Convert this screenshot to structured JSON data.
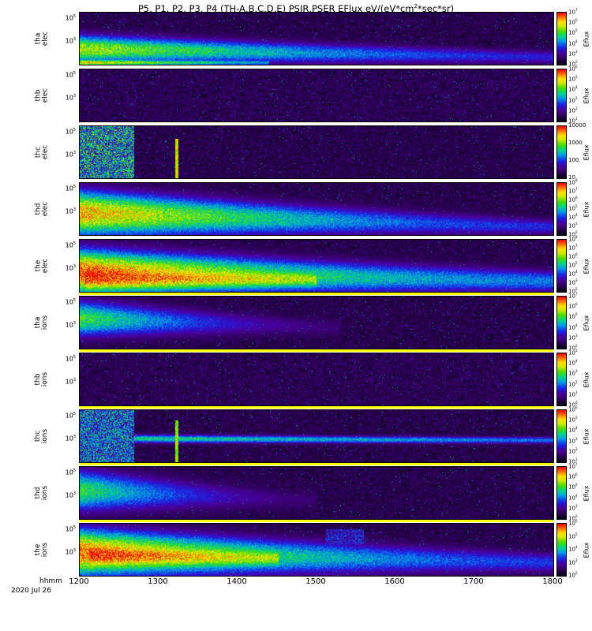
{
  "chart_data": {
    "type": "heatmap",
    "colormap": "rainbow",
    "title_prefix": "P5, P1, P2, P3, P4 (TH-A,B,C,D,E) PSIR,PSER EFlux eV/(eV*cm",
    "title_sup": "2",
    "title_suffix": "*sec*sr)",
    "colors": {
      "separator": "#ffff00",
      "panel_background": "#08000f",
      "page_background": "#ffffff"
    },
    "x_axis": {
      "label": "hhmm",
      "date": "2020 Jul 26",
      "ticks": [
        "1200",
        "1300",
        "1400",
        "1500",
        "1600",
        "1700",
        "1800"
      ],
      "range": [
        1200,
        1800
      ]
    },
    "panels": [
      {
        "probe": "tha",
        "species": "elec",
        "yticks": [
          {
            "base": "10",
            "exp": "5",
            "frac": 0.12
          },
          {
            "base": "10",
            "exp": "3",
            "frac": 0.55
          }
        ],
        "colorbar_label": "Eflux",
        "colorbar_ticks": [
          {
            "base": "10",
            "exp": "7"
          },
          {
            "base": "10",
            "exp": "6"
          },
          {
            "base": "10",
            "exp": "5"
          },
          {
            "base": "10",
            "exp": "4"
          },
          {
            "base": "10",
            "exp": "3"
          },
          {
            "base": "10",
            "exp": "2"
          }
        ],
        "noise": 0.18,
        "yellow_separator_after": false,
        "features": [
          {
            "type": "band",
            "x0": 0,
            "x1": 1,
            "v0": 0.72,
            "v1": 0.3,
            "yc0": 0.7,
            "yc1": 0.86,
            "yw0": 0.2,
            "yw1": 0.1,
            "p": 1.6
          },
          {
            "type": "band",
            "x0": 0,
            "x1": 0.4,
            "v0": 0.8,
            "v1": 0.45,
            "yc0": 0.96,
            "yc1": 0.96,
            "yw0": 0.05,
            "yw1": 0.04,
            "p": 1.2
          }
        ]
      },
      {
        "probe": "thb",
        "species": "elec",
        "yticks": [
          {
            "base": "10",
            "exp": "5",
            "frac": 0.12
          },
          {
            "base": "10",
            "exp": "3",
            "frac": 0.55
          }
        ],
        "colorbar_label": "Eflux",
        "colorbar_ticks": [
          {
            "base": "10",
            "exp": "6"
          },
          {
            "base": "10",
            "exp": "5"
          },
          {
            "base": "10",
            "exp": "4"
          },
          {
            "base": "10",
            "exp": "3"
          },
          {
            "base": "10",
            "exp": "2"
          },
          {
            "base": "10",
            "exp": "1"
          }
        ],
        "noise": 0.2,
        "yellow_separator_after": false,
        "features": []
      },
      {
        "probe": "thc",
        "species": "elec",
        "yticks": [
          {
            "base": "10",
            "exp": "5",
            "frac": 0.12
          },
          {
            "base": "10",
            "exp": "3",
            "frac": 0.55
          }
        ],
        "colorbar_label": "Eflux",
        "colorbar_ticks": [
          {
            "text": "10000"
          },
          {
            "text": "1000"
          },
          {
            "text": "100"
          },
          {
            "text": "10"
          }
        ],
        "noise": 0.18,
        "yellow_separator_after": false,
        "features": [
          {
            "type": "block",
            "x0": 0,
            "x1": 0.115,
            "y0": 0,
            "y1": 1,
            "vmin": 0.12,
            "vmax": 0.72
          },
          {
            "type": "vline",
            "x": 0.205,
            "y0": 0.25,
            "y1": 1,
            "v": 0.9,
            "w": 0.0035
          }
        ]
      },
      {
        "probe": "thd",
        "species": "elec",
        "yticks": [
          {
            "base": "10",
            "exp": "5",
            "frac": 0.12
          },
          {
            "base": "10",
            "exp": "3",
            "frac": 0.55
          }
        ],
        "colorbar_label": "Eflux",
        "colorbar_ticks": [
          {
            "base": "10",
            "exp": "8"
          },
          {
            "base": "10",
            "exp": "7"
          },
          {
            "base": "10",
            "exp": "6"
          },
          {
            "base": "10",
            "exp": "5"
          },
          {
            "base": "10",
            "exp": "4"
          },
          {
            "base": "10",
            "exp": "3"
          },
          {
            "base": "10",
            "exp": "2"
          }
        ],
        "noise": 0.18,
        "yellow_separator_after": false,
        "features": [
          {
            "type": "band",
            "x0": 0,
            "x1": 1,
            "v0": 0.86,
            "v1": 0.32,
            "yc0": 0.58,
            "yc1": 0.85,
            "yw0": 0.32,
            "yw1": 0.12,
            "p": 1.8
          }
        ]
      },
      {
        "probe": "the",
        "species": "elec",
        "yticks": [
          {
            "base": "10",
            "exp": "5",
            "frac": 0.12
          },
          {
            "base": "10",
            "exp": "3",
            "frac": 0.55
          }
        ],
        "colorbar_label": "Eflux",
        "colorbar_ticks": [
          {
            "base": "10",
            "exp": "8"
          },
          {
            "base": "10",
            "exp": "7"
          },
          {
            "base": "10",
            "exp": "6"
          },
          {
            "base": "10",
            "exp": "5"
          },
          {
            "base": "10",
            "exp": "4"
          },
          {
            "base": "10",
            "exp": "3"
          },
          {
            "base": "10",
            "exp": "2"
          }
        ],
        "noise": 0.18,
        "yellow_separator_after": true,
        "features": [
          {
            "type": "band",
            "x0": 0,
            "x1": 1,
            "v0": 0.95,
            "v1": 0.42,
            "yc0": 0.62,
            "yc1": 0.8,
            "yw0": 0.32,
            "yw1": 0.16,
            "p": 1.9
          },
          {
            "type": "band",
            "x0": 0.01,
            "x1": 0.5,
            "v0": 1.0,
            "v1": 0.72,
            "yc0": 0.72,
            "yc1": 0.76,
            "yw0": 0.22,
            "yw1": 0.14,
            "p": 1.2
          }
        ]
      },
      {
        "probe": "tha",
        "species": "ions",
        "yticks": [
          {
            "base": "10",
            "exp": "5",
            "frac": 0.12
          },
          {
            "base": "10",
            "exp": "3",
            "frac": 0.55
          }
        ],
        "colorbar_label": "Eflux",
        "colorbar_ticks": [
          {
            "base": "10",
            "exp": "7"
          },
          {
            "base": "10",
            "exp": "6"
          },
          {
            "base": "10",
            "exp": "5"
          },
          {
            "base": "10",
            "exp": "4"
          },
          {
            "base": "10",
            "exp": "3"
          },
          {
            "base": "10",
            "exp": "2"
          }
        ],
        "noise": 0.18,
        "yellow_separator_after": true,
        "features": [
          {
            "type": "band",
            "x0": 0,
            "x1": 0.55,
            "v0": 0.62,
            "v1": 0.15,
            "yc0": 0.42,
            "yc1": 0.6,
            "yw0": 0.26,
            "yw1": 0.13,
            "p": 1.5
          }
        ]
      },
      {
        "probe": "thb",
        "species": "ions",
        "yticks": [
          {
            "base": "10",
            "exp": "5",
            "frac": 0.12
          },
          {
            "base": "10",
            "exp": "3",
            "frac": 0.55
          }
        ],
        "colorbar_label": "Eflux",
        "colorbar_ticks": [
          {
            "base": "10",
            "exp": "5"
          },
          {
            "base": "10",
            "exp": "4"
          },
          {
            "base": "10",
            "exp": "3"
          },
          {
            "base": "10",
            "exp": "2"
          },
          {
            "base": "10",
            "exp": "1"
          },
          {
            "base": "10",
            "exp": "0"
          }
        ],
        "noise": 0.2,
        "yellow_separator_after": true,
        "features": []
      },
      {
        "probe": "thc",
        "species": "ions",
        "yticks": [
          {
            "base": "10",
            "exp": "5",
            "frac": 0.12
          },
          {
            "base": "10",
            "exp": "3",
            "frac": 0.55
          }
        ],
        "colorbar_label": "Eflux",
        "colorbar_ticks": [
          {
            "base": "10",
            "exp": "6"
          },
          {
            "base": "10",
            "exp": "5"
          },
          {
            "base": "10",
            "exp": "4"
          },
          {
            "base": "10",
            "exp": "3"
          },
          {
            "base": "10",
            "exp": "2"
          },
          {
            "base": "10",
            "exp": "1"
          }
        ],
        "noise": 0.18,
        "yellow_separator_after": true,
        "features": [
          {
            "type": "block",
            "x0": 0,
            "x1": 0.115,
            "y0": 0,
            "y1": 1,
            "vmin": 0.12,
            "vmax": 0.62
          },
          {
            "type": "band",
            "x0": 0.115,
            "x1": 1,
            "v0": 0.55,
            "v1": 0.4,
            "yc0": 0.55,
            "yc1": 0.58,
            "yw0": 0.06,
            "yw1": 0.05,
            "p": 1.0
          },
          {
            "type": "vline",
            "x": 0.205,
            "y0": 0.2,
            "y1": 1,
            "v": 0.8,
            "w": 0.003
          }
        ]
      },
      {
        "probe": "thd",
        "species": "ions",
        "yticks": [
          {
            "base": "10",
            "exp": "5",
            "frac": 0.12
          },
          {
            "base": "10",
            "exp": "3",
            "frac": 0.55
          }
        ],
        "colorbar_label": "Eflux",
        "colorbar_ticks": [
          {
            "base": "10",
            "exp": "7"
          },
          {
            "base": "10",
            "exp": "6"
          },
          {
            "base": "10",
            "exp": "5"
          },
          {
            "base": "10",
            "exp": "4"
          },
          {
            "base": "10",
            "exp": "3"
          },
          {
            "base": "10",
            "exp": "2"
          }
        ],
        "noise": 0.18,
        "yellow_separator_after": true,
        "features": [
          {
            "type": "band",
            "x0": 0,
            "x1": 0.5,
            "v0": 0.6,
            "v1": 0.14,
            "yc0": 0.45,
            "yc1": 0.65,
            "yw0": 0.3,
            "yw1": 0.14,
            "p": 1.5
          }
        ]
      },
      {
        "probe": "the",
        "species": "ions",
        "yticks": [
          {
            "base": "10",
            "exp": "5",
            "frac": 0.12
          },
          {
            "base": "10",
            "exp": "3",
            "frac": 0.55
          }
        ],
        "colorbar_label": "Eflux",
        "colorbar_ticks": [
          {
            "base": "10",
            "exp": "6"
          },
          {
            "base": "10",
            "exp": "5"
          },
          {
            "base": "10",
            "exp": "4"
          },
          {
            "base": "10",
            "exp": "3"
          },
          {
            "base": "10",
            "exp": "2"
          }
        ],
        "noise": 0.18,
        "yellow_separator_after": false,
        "features": [
          {
            "type": "band",
            "x0": 0,
            "x1": 1,
            "v0": 0.92,
            "v1": 0.34,
            "yc0": 0.55,
            "yc1": 0.75,
            "yw0": 0.33,
            "yw1": 0.15,
            "p": 1.8
          },
          {
            "type": "band",
            "x0": 0.02,
            "x1": 0.42,
            "v0": 1.0,
            "v1": 0.72,
            "yc0": 0.6,
            "yc1": 0.66,
            "yw0": 0.22,
            "yw1": 0.15,
            "p": 1.2
          },
          {
            "type": "block",
            "x0": 0.52,
            "x1": 0.6,
            "y0": 0.1,
            "y1": 0.4,
            "vmin": 0.1,
            "vmax": 0.42
          }
        ]
      }
    ]
  }
}
